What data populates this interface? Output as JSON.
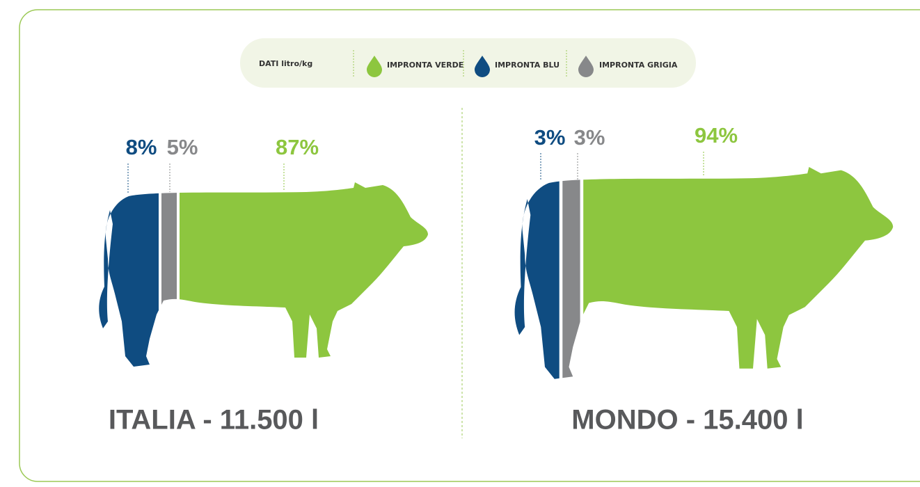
{
  "legend": {
    "label": "DATI litro/kg",
    "items": [
      "IMPRONTA VERDE",
      "IMPRONTA BLU",
      "IMPRONTA GRIGIA"
    ]
  },
  "panels": [
    {
      "title": "ITALIA - 11.500 l",
      "blue": "8%",
      "grey": "5%",
      "green": "87%"
    },
    {
      "title": "MONDO - 15.400 l",
      "blue": "3%",
      "grey": "3%",
      "green": "94%"
    }
  ]
}
